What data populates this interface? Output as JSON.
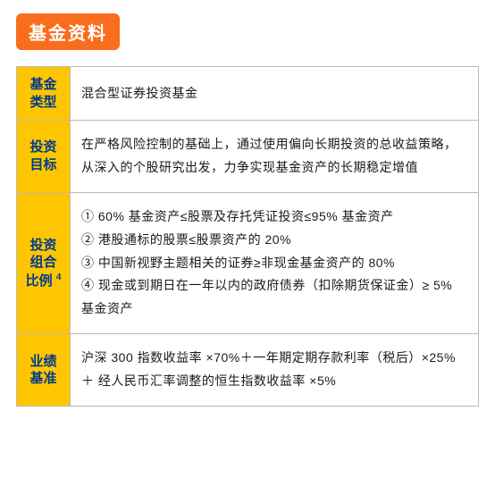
{
  "title_badge": "基金资料",
  "colors": {
    "badge_bg": "#f96e1e",
    "badge_text": "#ffffff",
    "label_bg": "#fdc600",
    "label_text": "#003a8c",
    "cell_bg": "#ffffff",
    "cell_text": "#1a1a1a",
    "border": "#b9b9b9"
  },
  "rows": [
    {
      "label": "基金\n类型",
      "value": "混合型证券投资基金"
    },
    {
      "label": "投资\n目标",
      "value": "在严格风险控制的基础上，通过使用偏向长期投资的总收益策略，从深入的个股研究出发，力争实现基金资产的长期稳定增值"
    },
    {
      "label": "投资\n组合\n比例",
      "label_sup": "4",
      "value": "① 60% 基金资产≤股票及存托凭证投资≤95% 基金资产\n② 港股通标的股票≤股票资产的 20%\n③ 中国新视野主题相关的证券≥非现金基金资产的 80%\n④ 现金或到期日在一年以内的政府债券（扣除期货保证金）≥ 5% 基金资产"
    },
    {
      "label": "业绩\n基准",
      "value": "沪深 300 指数收益率 ×70%＋一年期定期存款利率（税后）×25%＋ 经人民币汇率调整的恒生指数收益率 ×5%"
    }
  ]
}
